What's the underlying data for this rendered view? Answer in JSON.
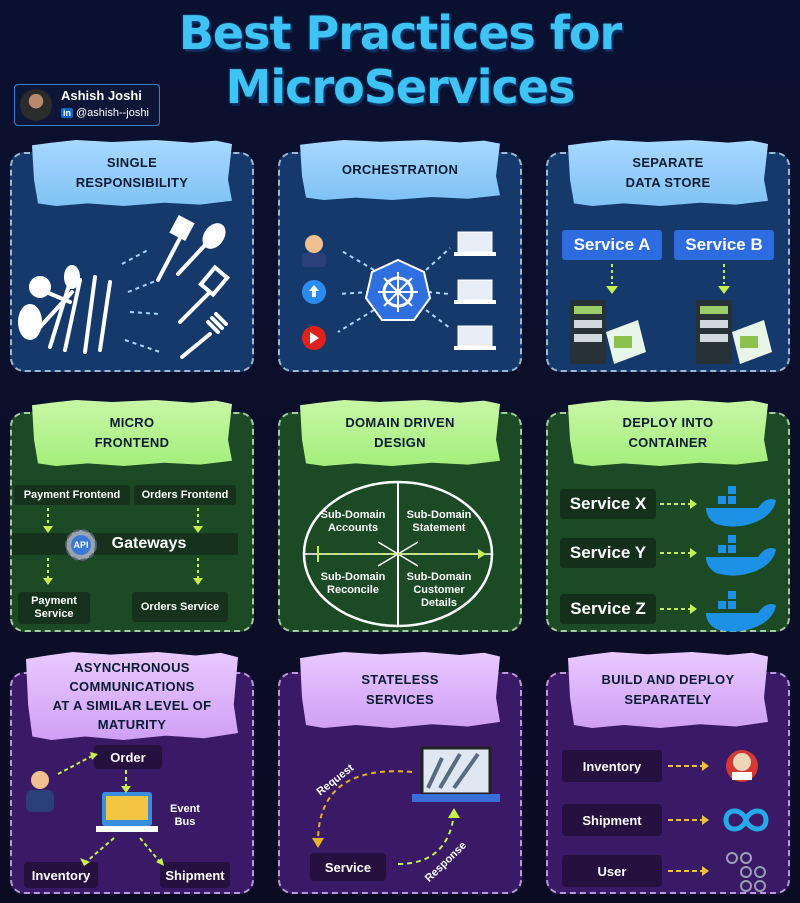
{
  "title": "Best Practices for MicroServices",
  "author": {
    "name": "Ashish Joshi",
    "linkedin_badge": "in",
    "handle": "@ashish--joshi"
  },
  "single_responsibility": {
    "title": "SINGLE\nRESPONSIBILITY"
  },
  "orchestration": {
    "title": "ORCHESTRATION"
  },
  "separate_data_store": {
    "title": "SEPARATE\nDATA STORE",
    "service_a": "Service A",
    "service_b": "Service B"
  },
  "micro_frontend": {
    "title": "MICRO\nFRONTEND",
    "payment_frontend": "Payment Frontend",
    "orders_frontend": "Orders Frontend",
    "api": "API",
    "gateways": "Gateways",
    "payment_service": "Payment\nService",
    "orders_service": "Orders Service"
  },
  "domain_driven_design": {
    "title": "DOMAIN DRIVEN\nDESIGN",
    "accounts": "Sub-Domain\nAccounts",
    "statement": "Sub-Domain\nStatement",
    "reconcile": "Sub-Domain\nReconcile",
    "customer_details": "Sub-Domain\nCustomer\nDetails"
  },
  "deploy_container": {
    "title": "DEPLOY INTO\nCONTAINER",
    "services": [
      "Service X",
      "Service Y",
      "Service Z"
    ]
  },
  "async_comm": {
    "title": "ASYNCHRONOUS\nCOMMUNICATIONS\nAT A SIMILAR LEVEL OF\nMATURITY",
    "order": "Order",
    "event_bus": "Event\nBus",
    "inventory": "Inventory",
    "shipment": "Shipment"
  },
  "stateless": {
    "title": "STATELESS\nSERVICES",
    "request": "Request",
    "response": "Response",
    "service": "Service"
  },
  "build_deploy": {
    "title": "BUILD AND DEPLOY\nSEPARATELY",
    "items": [
      "Inventory",
      "Shipment",
      "User"
    ]
  },
  "colors": {
    "title": "#3fc3f4",
    "blue_card": "#16396b",
    "green_card": "#1b4a25",
    "purple_card": "#3a1a66",
    "arrow": "#c8f04a"
  }
}
